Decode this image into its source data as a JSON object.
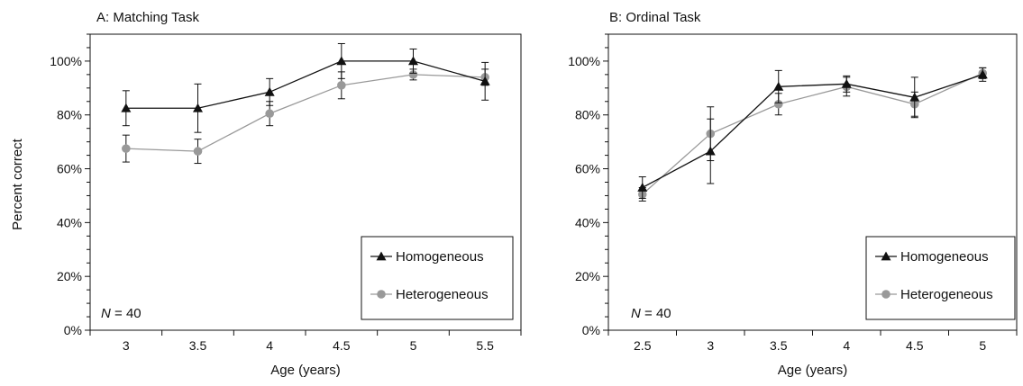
{
  "shared": {
    "ylabel": "Percent correct",
    "xlabel": "Age (years)",
    "y_ticks": [
      "0%",
      "20%",
      "40%",
      "60%",
      "80%",
      "100%"
    ],
    "series_colors": {
      "Homogeneous": "#111111",
      "Heterogeneous": "#999999"
    },
    "markers": {
      "Homogeneous": "triangle",
      "Heterogeneous": "circle"
    }
  },
  "chart_data": [
    {
      "type": "line",
      "title": "A: Matching Task",
      "xlabel": "Age (years)",
      "ylabel": "Percent correct",
      "x": [
        3,
        3.5,
        4,
        4.5,
        5,
        5.5
      ],
      "x_tick_labels": [
        "3",
        "3.5",
        "4",
        "4.5",
        "5",
        "5.5"
      ],
      "ylim": [
        0,
        110
      ],
      "annotation": {
        "italic": "N",
        "text": " = 40"
      },
      "legend": {
        "position": "lower-right",
        "entries": [
          "Homogeneous",
          "Heterogeneous"
        ]
      },
      "grid": false,
      "series": [
        {
          "name": "Homogeneous",
          "values": [
            82.5,
            82.5,
            88.5,
            100,
            100,
            92.5
          ],
          "error": [
            6.5,
            9,
            5,
            6.5,
            4.5,
            7
          ]
        },
        {
          "name": "Heterogeneous",
          "values": [
            67.5,
            66.5,
            80.5,
            91,
            95,
            94
          ],
          "error": [
            5,
            4.5,
            4.5,
            5,
            2,
            3
          ]
        }
      ]
    },
    {
      "type": "line",
      "title": "B: Ordinal Task",
      "xlabel": "Age (years)",
      "ylabel": "",
      "x": [
        2.5,
        3,
        3.5,
        4,
        4.5,
        5
      ],
      "x_tick_labels": [
        "2.5",
        "3",
        "3.5",
        "4",
        "4.5",
        "5"
      ],
      "ylim": [
        0,
        110
      ],
      "annotation": {
        "italic": "N",
        "text": " = 40"
      },
      "legend": {
        "position": "lower-right",
        "entries": [
          "Homogeneous",
          "Heterogeneous"
        ]
      },
      "grid": false,
      "series": [
        {
          "name": "Homogeneous",
          "values": [
            53,
            66.5,
            90.5,
            91.5,
            86.5,
            95
          ],
          "error": [
            4,
            12,
            6,
            3,
            7.5,
            2.5
          ]
        },
        {
          "name": "Heterogeneous",
          "values": [
            50.5,
            73,
            84,
            90.5,
            84,
            95.5
          ],
          "error": [
            2.5,
            10,
            4,
            3.5,
            4.5,
            2
          ]
        }
      ]
    }
  ]
}
